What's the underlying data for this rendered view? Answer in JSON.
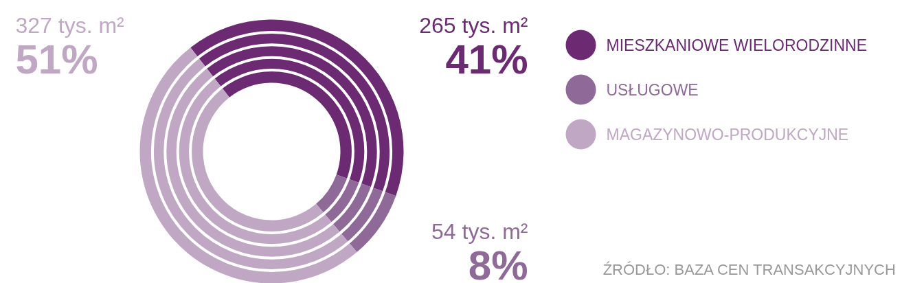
{
  "chart_data": {
    "type": "donut",
    "categories": [
      "MIESZKANIOWE WIELORODZINNE",
      "USŁUGOWE",
      "MAGAZYNOWO-PRODUKCYJNE"
    ],
    "values": [
      265,
      54,
      327
    ],
    "colors": [
      "#6b2a72",
      "#8f6a98",
      "#c0a8c4"
    ],
    "value_labels": [
      "265 tys. m²\n41%",
      "54 tys. m²\n8%",
      "327 tys. m²\n51%"
    ],
    "legend": "top right",
    "annotations": [
      "ŹRÓDŁO: BAZA CEN TRANSAKCYJNYCH"
    ]
  }
}
